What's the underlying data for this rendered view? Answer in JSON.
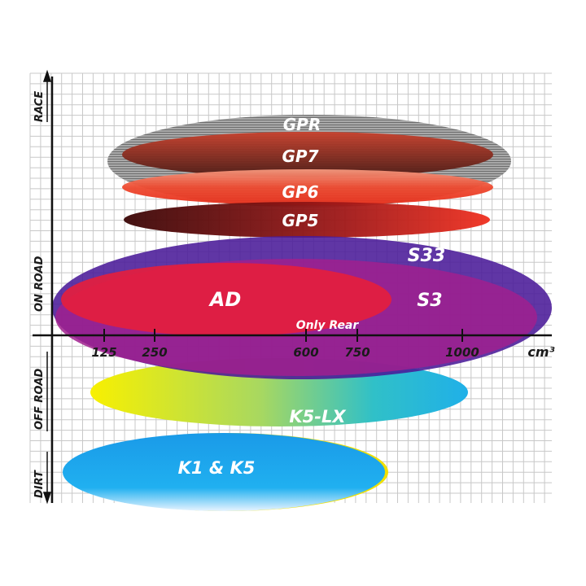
{
  "y_axis": {
    "categories": [
      "RACE",
      "ON ROAD",
      "OFF ROAD",
      "DIRT"
    ]
  },
  "x_axis": {
    "ticks": [
      "125",
      "250",
      "600",
      "750",
      "1000"
    ],
    "unit": "cm³"
  },
  "products": [
    {
      "id": "gpr",
      "label": "GPR",
      "color": "#9a9a9a"
    },
    {
      "id": "gp7",
      "label": "GP7",
      "color": "#8b2a1e"
    },
    {
      "id": "gp6",
      "label": "GP6",
      "color": "#e8452c"
    },
    {
      "id": "gp5",
      "label": "GP5",
      "color": "#a01515"
    },
    {
      "id": "s33",
      "label": "S33",
      "color": "#5a2a9a"
    },
    {
      "id": "s3",
      "label": "S3",
      "color": "#9a2090"
    },
    {
      "id": "ad",
      "label": "AD",
      "color": "#e0203c",
      "note": "Only Rear"
    },
    {
      "id": "k5lx",
      "label": "K5-LX",
      "color": "#20b8e0"
    },
    {
      "id": "k1k5",
      "label": "K1 & K5",
      "color": "#1aa8e8"
    }
  ]
}
